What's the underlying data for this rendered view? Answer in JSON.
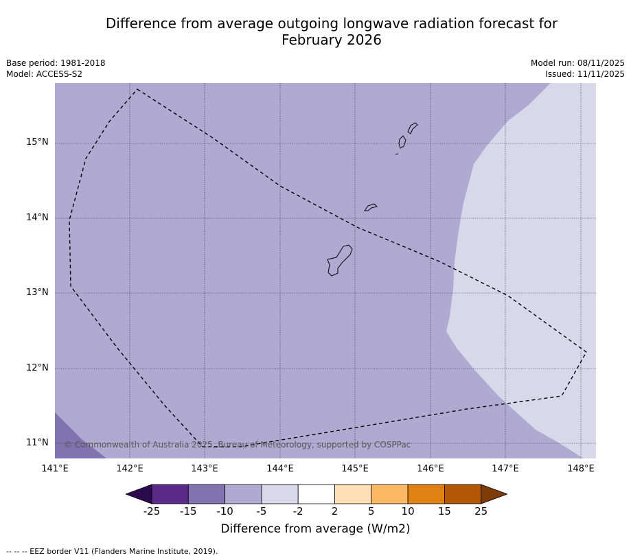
{
  "title_line1": "Difference from average outgoing longwave radiation forecast for",
  "title_line2": "February 2026",
  "meta_left": {
    "base_period": "Base period: 1981-2018",
    "model": "Model: ACCESS-S2"
  },
  "meta_right": {
    "model_run": "Model run: 08/11/2025",
    "issued": "Issued: 11/11/2025"
  },
  "copyright": "© Commonwealth of Australia 2025, Bureau of Meteorology, supported by COSPPac",
  "lat_ticks": [
    "15°N",
    "14°N",
    "13°N",
    "12°N",
    "11°N"
  ],
  "lon_ticks": [
    "141°E",
    "142°E",
    "143°E",
    "144°E",
    "145°E",
    "146°E",
    "147°E",
    "148°E"
  ],
  "colorbar": {
    "ticks": [
      "-25",
      "-15",
      "-10",
      "-5",
      "-2",
      "2",
      "5",
      "10",
      "15",
      "25"
    ],
    "colors": [
      "#2d0a4e",
      "#5a2a8a",
      "#8172b0",
      "#b0aad2",
      "#d9d8ea",
      "#ffffff",
      "#fde0b6",
      "#fdb863",
      "#e08214",
      "#b35806",
      "#7f3b08"
    ],
    "label": "Difference from average (W/m2)"
  },
  "footnote": "--  --  -- EEZ border V11 (Flanders Marine Institute, 2019).",
  "colors": {
    "field_main": "#b0aad2",
    "field_light": "#d9d8ea",
    "field_dark": "#8172b0"
  }
}
